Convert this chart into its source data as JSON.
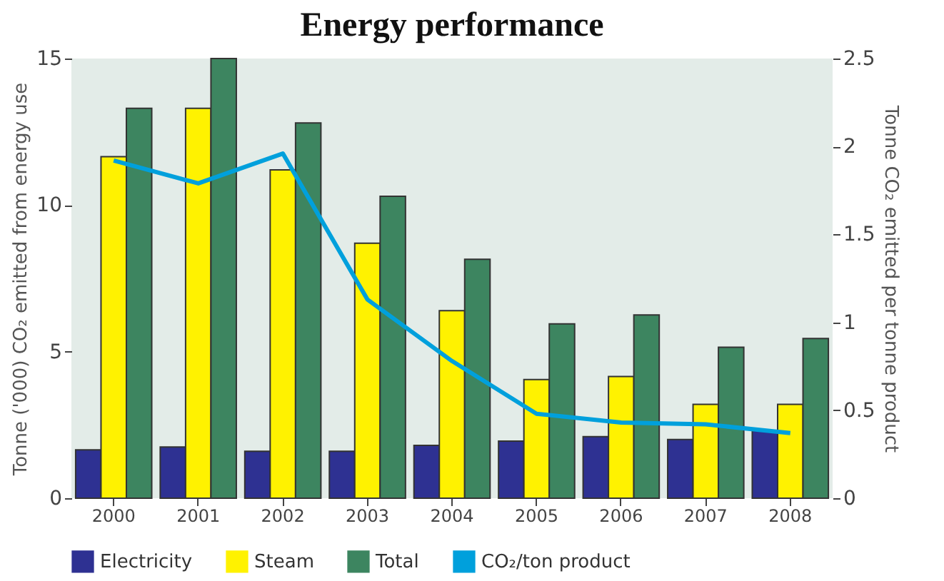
{
  "chart_data": {
    "type": "bar",
    "title": "Energy performance",
    "ylabel": "Tonne ('000) CO₂ emitted from energy use",
    "y2label": "Tonne CO₂ emitted per tonne product",
    "categories": [
      "2000",
      "2001",
      "2002",
      "2003",
      "2004",
      "2005",
      "2006",
      "2007",
      "2008"
    ],
    "series": [
      {
        "name": "Electricity",
        "color": "#2e3192",
        "values": [
          1.65,
          1.75,
          1.6,
          1.6,
          1.8,
          1.95,
          2.1,
          2.0,
          2.3
        ]
      },
      {
        "name": "Steam",
        "color": "#fff200",
        "values": [
          11.65,
          13.3,
          11.2,
          8.7,
          6.4,
          4.05,
          4.15,
          3.2,
          3.2
        ]
      },
      {
        "name": "Total",
        "color": "#3d8560",
        "values": [
          13.3,
          15,
          12.8,
          10.3,
          8.15,
          5.95,
          6.25,
          5.15,
          5.45
        ]
      },
      {
        "name": "CO₂/ton product",
        "type": "line",
        "axis": "y2",
        "color": "#00a0dc",
        "values": [
          1.92,
          1.79,
          1.96,
          1.13,
          0.78,
          0.48,
          0.43,
          0.42,
          0.37
        ]
      }
    ],
    "ylim": [
      0,
      15
    ],
    "yticks": [
      0,
      5,
      10,
      15
    ],
    "y2lim": [
      0,
      2.5
    ],
    "y2ticks": [
      0,
      0.5,
      1,
      1.5,
      2,
      2.5
    ],
    "grid": false,
    "legend": "bottom"
  }
}
